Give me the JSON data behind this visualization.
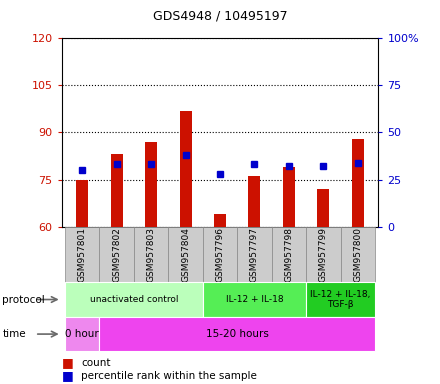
{
  "title": "GDS4948 / 10495197",
  "samples": [
    "GSM957801",
    "GSM957802",
    "GSM957803",
    "GSM957804",
    "GSM957796",
    "GSM957797",
    "GSM957798",
    "GSM957799",
    "GSM957800"
  ],
  "counts": [
    75,
    83,
    87,
    97,
    64,
    76,
    79,
    72,
    88
  ],
  "percentile_ranks_pct": [
    30,
    33,
    33,
    38,
    28,
    33,
    32,
    32,
    34
  ],
  "ylim_left": [
    60,
    120
  ],
  "ylim_right": [
    0,
    100
  ],
  "yticks_left": [
    60,
    75,
    90,
    105,
    120
  ],
  "yticks_right": [
    0,
    25,
    50,
    75,
    100
  ],
  "ytick_labels_right": [
    "0",
    "25",
    "50",
    "75",
    "100%"
  ],
  "bar_color": "#cc1100",
  "dot_color": "#0000cc",
  "protocol_groups": [
    {
      "label": "unactivated control",
      "start": 0,
      "end": 4,
      "color": "#bbffbb"
    },
    {
      "label": "IL-12 + IL-18",
      "start": 4,
      "end": 7,
      "color": "#55ee55"
    },
    {
      "label": "IL-12 + IL-18,\nTGF-β",
      "start": 7,
      "end": 9,
      "color": "#22cc22"
    }
  ],
  "time_groups": [
    {
      "label": "0 hour",
      "start": 0,
      "end": 1,
      "color": "#ee88ee"
    },
    {
      "label": "15-20 hours",
      "start": 1,
      "end": 9,
      "color": "#ee44ee"
    }
  ],
  "left_axis_color": "#cc1100",
  "right_axis_color": "#0000cc",
  "sample_label_bg": "#cccccc",
  "sample_label_border": "#888888"
}
